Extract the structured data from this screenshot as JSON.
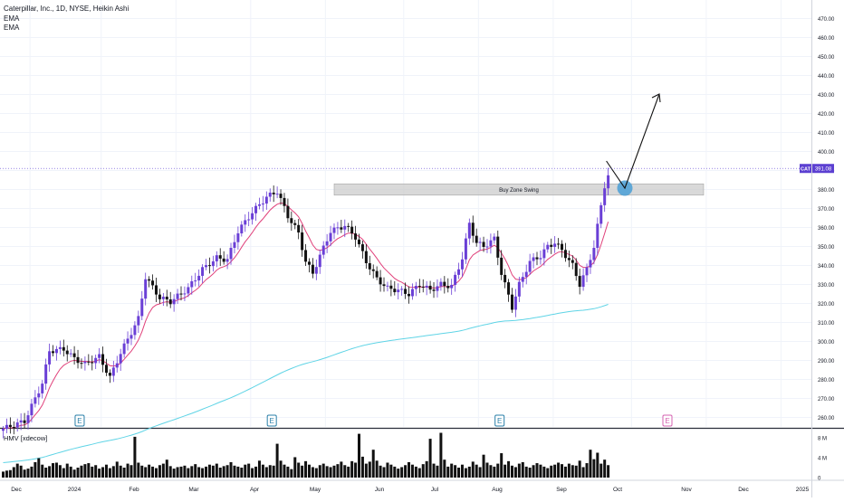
{
  "legend": {
    "title": "Caterpillar, Inc., 1D, NYSE, Heikin Ashi",
    "line1": "EMA",
    "line2": "EMA"
  },
  "price_tag": {
    "symbol": "CAT",
    "value": "391.08",
    "color": "#5b3fd1"
  },
  "zone_label": "Buy Zone Swing",
  "volume_label": "HMV [xdecow]",
  "earnings_marker": "E",
  "colors": {
    "up": "#6a3fd6",
    "down": "#111111",
    "ema_fast": "#e0407a",
    "ema_slow": "#5fd4e6",
    "zone": "#cccccc",
    "circle": "#4a9fd6",
    "volume": "#111111"
  },
  "chart_data": {
    "type": "candlestick",
    "price_axis": {
      "ylim": [
        255,
        475
      ],
      "ticks": [
        260,
        270,
        280,
        290,
        300,
        310,
        320,
        330,
        340,
        350,
        360,
        370,
        380,
        390,
        400,
        410,
        420,
        430,
        440,
        450,
        460,
        470
      ]
    },
    "volume_axis": {
      "ylim": [
        0,
        9
      ],
      "ticks": [
        0,
        4,
        8
      ],
      "tick_labels": [
        "0",
        "4 M",
        "8 M"
      ]
    },
    "x_axis": {
      "labels": [
        "Dec",
        "2024",
        "Feb",
        "Mar",
        "Apr",
        "May",
        "Jun",
        "Jul",
        "Aug",
        "Sep",
        "Oct",
        "Nov",
        "Dec",
        "2025"
      ]
    },
    "last_price": 391.08,
    "buy_zone": {
      "low": 377,
      "high": 383
    },
    "anchors": [
      [
        0,
        254
      ],
      [
        6,
        258
      ],
      [
        11,
        278
      ],
      [
        13,
        295
      ],
      [
        17,
        296
      ],
      [
        20,
        291
      ],
      [
        23,
        288
      ],
      [
        27,
        292
      ],
      [
        30,
        281
      ],
      [
        33,
        294
      ],
      [
        38,
        312
      ],
      [
        40,
        334
      ],
      [
        44,
        323
      ],
      [
        47,
        321
      ],
      [
        52,
        328
      ],
      [
        56,
        338
      ],
      [
        60,
        344
      ],
      [
        63,
        343
      ],
      [
        66,
        358
      ],
      [
        70,
        368
      ],
      [
        74,
        376
      ],
      [
        77,
        379
      ],
      [
        80,
        366
      ],
      [
        83,
        357
      ],
      [
        85,
        342
      ],
      [
        87,
        336
      ],
      [
        89,
        345
      ],
      [
        92,
        358
      ],
      [
        96,
        361
      ],
      [
        99,
        355
      ],
      [
        102,
        342
      ],
      [
        105,
        333
      ],
      [
        108,
        328
      ],
      [
        111,
        327
      ],
      [
        114,
        325
      ],
      [
        117,
        330
      ],
      [
        120,
        327
      ],
      [
        123,
        330
      ],
      [
        126,
        329
      ],
      [
        129,
        344
      ],
      [
        131,
        362
      ],
      [
        133,
        352
      ],
      [
        135,
        350
      ],
      [
        138,
        354
      ],
      [
        140,
        336
      ],
      [
        143,
        318
      ],
      [
        145,
        330
      ],
      [
        148,
        342
      ],
      [
        151,
        345
      ],
      [
        153,
        350
      ],
      [
        155,
        352
      ],
      [
        157,
        348
      ],
      [
        160,
        340
      ],
      [
        162,
        330
      ],
      [
        164,
        338
      ],
      [
        166,
        350
      ],
      [
        169,
        382
      ],
      [
        171,
        393
      ],
      [
        172,
        391
      ]
    ],
    "earnings_indices": [
      22,
      76,
      140
    ],
    "upcoming_earnings_label": "E",
    "volume_values_M": [
      1.2,
      1.4,
      1.5,
      2.1,
      2.8,
      2.4,
      1.6,
      1.8,
      2.2,
      3.1,
      3.9,
      2.6,
      2.0,
      2.3,
      2.9,
      3.0,
      2.5,
      1.9,
      2.8,
      2.2,
      1.6,
      2.0,
      2.4,
      2.7,
      2.9,
      2.2,
      2.5,
      1.8,
      2.1,
      2.6,
      1.9,
      2.3,
      3.2,
      2.4,
      2.0,
      2.8,
      2.5,
      8.2,
      3.0,
      2.4,
      2.1,
      2.6,
      2.2,
      1.9,
      2.5,
      2.8,
      3.6,
      2.3,
      1.8,
      2.1,
      2.2,
      2.4,
      1.9,
      2.3,
      2.7,
      2.1,
      1.9,
      2.2,
      2.6,
      2.4,
      2.8,
      2.0,
      2.3,
      2.5,
      3.1,
      2.4,
      2.2,
      2.0,
      2.6,
      2.8,
      1.9,
      2.2,
      3.4,
      2.6,
      2.1,
      2.5,
      2.4,
      6.8,
      3.4,
      2.6,
      2.2,
      1.7,
      4.1,
      3.0,
      2.4,
      3.3,
      2.6,
      2.1,
      1.9,
      2.5,
      2.8,
      2.3,
      2.1,
      2.4,
      2.7,
      3.2,
      2.5,
      2.2,
      3.3,
      3.0,
      8.8,
      4.2,
      2.8,
      3.2,
      5.6,
      3.4,
      2.4,
      2.1,
      3.0,
      2.6,
      2.2,
      1.8,
      2.1,
      2.5,
      3.1,
      2.6,
      2.2,
      1.9,
      2.7,
      3.3,
      7.8,
      2.8,
      2.4,
      9.0,
      3.6,
      2.2,
      2.8,
      2.5,
      2.0,
      2.6,
      1.9,
      2.2,
      3.2,
      2.6,
      2.1,
      4.6,
      3.0,
      2.5,
      2.2,
      2.8,
      4.9,
      2.6,
      3.3,
      2.4,
      2.1,
      2.8,
      3.1,
      2.2,
      2.0,
      2.5,
      2.9,
      2.6,
      2.2,
      1.9,
      2.4,
      2.6,
      3.0,
      2.7,
      2.2,
      2.8,
      2.5,
      2.4,
      3.4,
      2.1,
      2.9,
      5.6,
      3.7,
      5.0,
      2.8,
      3.6,
      2.5
    ]
  }
}
